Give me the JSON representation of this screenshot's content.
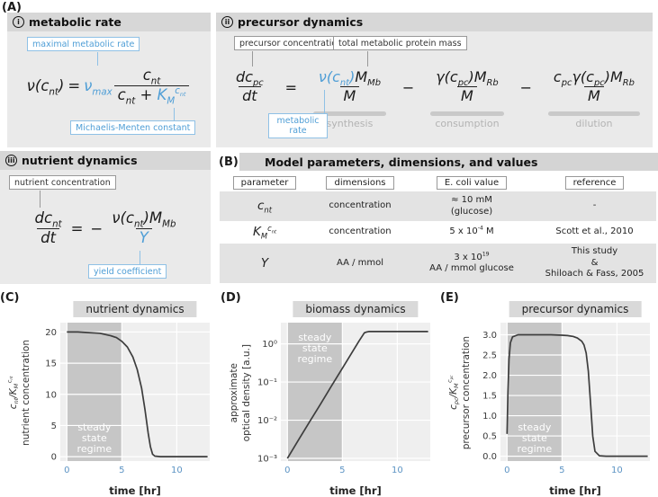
{
  "panel_a": {
    "label": "(A)",
    "metabolic_rate": {
      "badge": "i",
      "title": "metabolic rate",
      "ann_max": "maximal metabolic rate",
      "ann_km": "Michaelis-Menten constant",
      "eq": {
        "lhs": "ν(c_{nt})",
        "equals": "=",
        "vmax": "ν_{max}",
        "num": "c_{nt}",
        "den_left": "c_{nt} +",
        "den_k": "K_{M}^{c_{nt}}"
      }
    },
    "precursor_dynamics": {
      "badge": "ii",
      "title": "precursor dynamics",
      "ann_pc": "precursor concentration",
      "ann_mass": "total metabolic protein mass",
      "ann_rate": "metabolic rate",
      "eq": {
        "lhs_num": "dc_{pc}",
        "lhs_den": "dt",
        "equals": "=",
        "minus": "−",
        "t1_nu": "ν(c_{nt})",
        "t1_rest": "M_{Mb}",
        "t1_den": "M",
        "t1_label": "synthesis",
        "t2_num": "γ(c_{pc})M_{Rb}",
        "t2_den": "M",
        "t2_label": "consumption",
        "t3_num": "c_{pc}γ(c_{pc})M_{Rb}",
        "t3_den": "M",
        "t3_label": "dilution"
      }
    },
    "nutrient_dynamics": {
      "badge": "iii",
      "title": "nutrient dynamics",
      "ann_nt": "nutrient concentration",
      "ann_yield": "yield coefficient",
      "eq": {
        "lhs_num": "dc_{nt}",
        "lhs_den": "dt",
        "equals": "=",
        "minus": "−",
        "num": "ν(c_{nt})M_{Mb}",
        "den": "Y"
      }
    }
  },
  "panel_b": {
    "label": "(B)",
    "title": "Model parameters, dimensions, and values",
    "headers": [
      "parameter",
      "dimensions",
      "E. coli value",
      "reference"
    ],
    "rows": [
      {
        "parameter": "c_{nt}",
        "dimensions": "concentration",
        "value": "≈ 10 mM\n(glucose)",
        "reference": "-"
      },
      {
        "parameter": "K_{M}^{c_{nt}}",
        "dimensions": "concentration",
        "value": "5 x 10^{-4} M",
        "reference": "Scott et al., 2010"
      },
      {
        "parameter": "Y",
        "dimensions": "AA / mmol",
        "value": "3 x 10^{19}\nAA / mmol glucose",
        "reference": "This study\n&\nShiloach & Fass, 2005"
      }
    ]
  },
  "chart_data": [
    {
      "type": "line",
      "panel": "(C)",
      "title": "nutrient dynamics",
      "ylabel1": "c_{nt}/K_{M}^{c_{nt}}",
      "ylabel2": "nutrient concentration",
      "xlabel": "time [hr]",
      "yscale": "linear",
      "xlim": [
        -0.6,
        13
      ],
      "ylim": [
        -0.7,
        21.5
      ],
      "xticks": [
        0,
        5,
        10
      ],
      "yticks": [
        0,
        5,
        10,
        15,
        20
      ],
      "band": {
        "x0": 0,
        "x1": 5,
        "label": "steady state regime",
        "label_pos": "bottom"
      },
      "x": [
        0,
        1,
        2,
        3,
        4,
        4.5,
        5,
        5.5,
        6,
        6.4,
        6.8,
        7.1,
        7.4,
        7.6,
        7.8,
        8,
        8.5,
        9,
        10,
        11,
        12,
        12.8
      ],
      "y": [
        20,
        20,
        19.9,
        19.8,
        19.4,
        19.1,
        18.5,
        17.6,
        16,
        14,
        11,
        7.6,
        3.8,
        1.6,
        0.4,
        0.1,
        0,
        0,
        0,
        0,
        0,
        0
      ]
    },
    {
      "type": "line",
      "panel": "(D)",
      "title": "biomass dynamics",
      "ylabel1": "approximate",
      "ylabel2": "optical density [a.u.]",
      "xlabel": "time [hr]",
      "yscale": "log",
      "xlim": [
        -0.6,
        13
      ],
      "ylim": [
        0.00085,
        3.6
      ],
      "xticks": [
        0,
        5,
        10
      ],
      "yticks": [
        0.001,
        0.01,
        0.1,
        1
      ],
      "ytick_labels": [
        "10⁻³",
        "10⁻²",
        "10⁻¹",
        "10⁰"
      ],
      "band": {
        "x0": 0,
        "x1": 5,
        "label": "steady state regime",
        "label_pos": "top"
      },
      "x": [
        0,
        1,
        2,
        3,
        4,
        5,
        6,
        6.5,
        7,
        7.2,
        7.4,
        8,
        9,
        10,
        11,
        12,
        12.8
      ],
      "y": [
        0.001,
        0.003,
        0.0089,
        0.026,
        0.078,
        0.23,
        0.68,
        1.17,
        1.95,
        2.05,
        2.1,
        2.1,
        2.1,
        2.1,
        2.1,
        2.1,
        2.1
      ]
    },
    {
      "type": "line",
      "panel": "(E)",
      "title": "precursor dynamics",
      "ylabel1": "c_{pc}/K_{M}^{c_{pc}}",
      "ylabel2": "precursor concentration",
      "xlabel": "time [hr]",
      "yscale": "linear",
      "xlim": [
        -0.6,
        13
      ],
      "ylim": [
        -0.12,
        3.3
      ],
      "xticks": [
        0,
        5,
        10
      ],
      "yticks": [
        0,
        0.5,
        1,
        1.5,
        2,
        2.5,
        3
      ],
      "ytick_labels": [
        "0.0",
        "0.5",
        "1.0",
        "1.5",
        "2.0",
        "2.5",
        "3.0"
      ],
      "band": {
        "x0": 0,
        "x1": 5,
        "label": "steady state regime",
        "label_pos": "bottom"
      },
      "x": [
        0,
        0.08,
        0.18,
        0.3,
        0.5,
        1,
        2,
        3,
        4,
        5,
        5.5,
        6,
        6.4,
        6.8,
        7,
        7.2,
        7.4,
        7.6,
        7.8,
        8,
        8.4,
        9,
        10,
        11,
        12,
        12.8
      ],
      "y": [
        0.55,
        1.6,
        2.4,
        2.8,
        2.95,
        3,
        3,
        3,
        3,
        2.99,
        2.98,
        2.96,
        2.92,
        2.84,
        2.75,
        2.55,
        2.1,
        1.3,
        0.5,
        0.12,
        0.01,
        0,
        0,
        0,
        0,
        0
      ]
    }
  ]
}
